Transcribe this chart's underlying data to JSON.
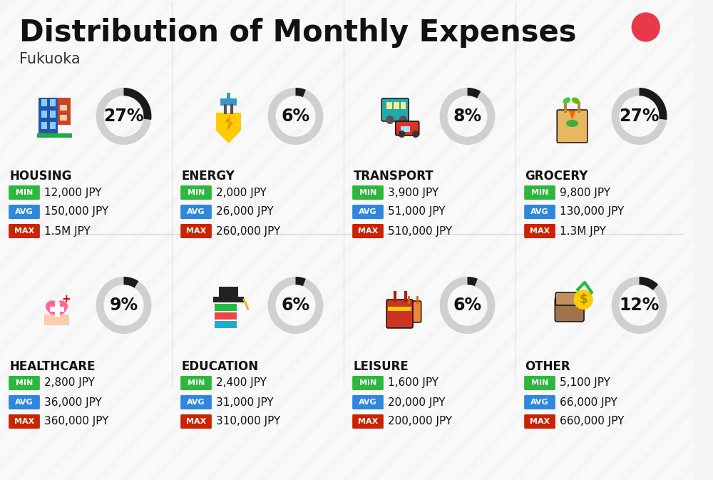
{
  "title": "Distribution of Monthly Expenses",
  "subtitle": "Fukuoka",
  "background_color": "#f5f5f5",
  "categories": [
    {
      "name": "HOUSING",
      "pct": 27,
      "min_val": "12,000 JPY",
      "avg_val": "150,000 JPY",
      "max_val": "1.5M JPY",
      "row": 0,
      "col": 0
    },
    {
      "name": "ENERGY",
      "pct": 6,
      "min_val": "2,000 JPY",
      "avg_val": "26,000 JPY",
      "max_val": "260,000 JPY",
      "row": 0,
      "col": 1
    },
    {
      "name": "TRANSPORT",
      "pct": 8,
      "min_val": "3,900 JPY",
      "avg_val": "51,000 JPY",
      "max_val": "510,000 JPY",
      "row": 0,
      "col": 2
    },
    {
      "name": "GROCERY",
      "pct": 27,
      "min_val": "9,800 JPY",
      "avg_val": "130,000 JPY",
      "max_val": "1.3M JPY",
      "row": 0,
      "col": 3
    },
    {
      "name": "HEALTHCARE",
      "pct": 9,
      "min_val": "2,800 JPY",
      "avg_val": "36,000 JPY",
      "max_val": "360,000 JPY",
      "row": 1,
      "col": 0
    },
    {
      "name": "EDUCATION",
      "pct": 6,
      "min_val": "2,400 JPY",
      "avg_val": "31,000 JPY",
      "max_val": "310,000 JPY",
      "row": 1,
      "col": 1
    },
    {
      "name": "LEISURE",
      "pct": 6,
      "min_val": "1,600 JPY",
      "avg_val": "20,000 JPY",
      "max_val": "200,000 JPY",
      "row": 1,
      "col": 2
    },
    {
      "name": "OTHER",
      "pct": 12,
      "min_val": "5,100 JPY",
      "avg_val": "66,000 JPY",
      "max_val": "660,000 JPY",
      "row": 1,
      "col": 3
    }
  ],
  "min_color": "#2db83d",
  "avg_color": "#2e86de",
  "max_color": "#cc2200",
  "arc_dark": "#1a1a1a",
  "arc_light": "#d0d0d0",
  "dot_color": "#e8394a",
  "title_fontsize": 30,
  "subtitle_fontsize": 15,
  "pct_fontsize": 17,
  "cat_fontsize": 12,
  "badge_fontsize": 8,
  "value_fontsize": 11
}
